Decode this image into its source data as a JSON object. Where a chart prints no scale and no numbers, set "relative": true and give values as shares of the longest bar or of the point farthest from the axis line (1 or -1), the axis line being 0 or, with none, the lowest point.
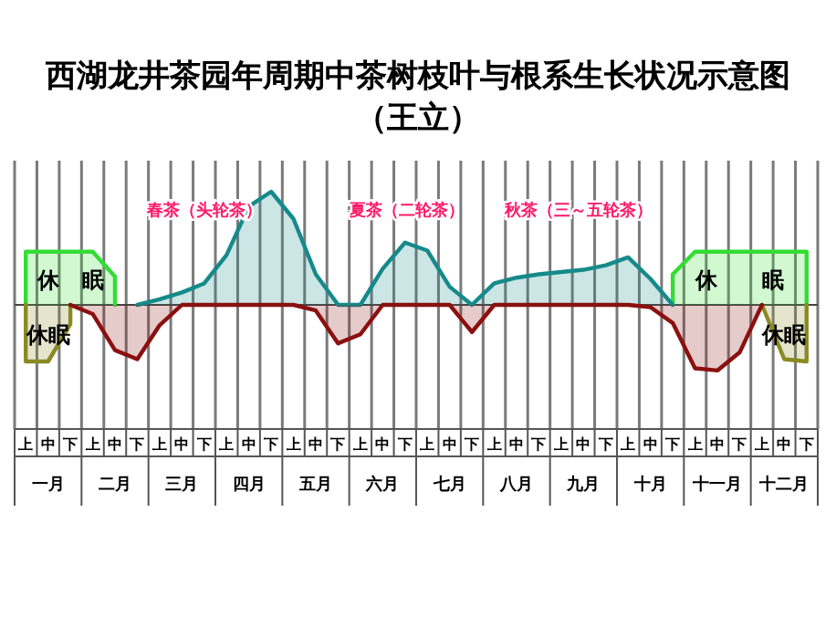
{
  "chart_data": {
    "type": "area",
    "title": "西湖龙井茶园年周期中茶树枝叶与根系生长状况示意图",
    "subtitle": "（王立）",
    "relative": true,
    "grid": "x",
    "legend": false,
    "categories": [
      "上",
      "中",
      "下",
      "上",
      "中",
      "下",
      "上",
      "中",
      "下",
      "上",
      "中",
      "下",
      "上",
      "中",
      "下",
      "上",
      "中",
      "下",
      "上",
      "中",
      "下",
      "上",
      "中",
      "下",
      "上",
      "中",
      "下",
      "上",
      "中",
      "下",
      "上",
      "中",
      "下",
      "上",
      "中",
      "下"
    ],
    "annotations": [
      "春茶（头轮茶）",
      "夏茶（二轮茶）",
      "秋茶（三～五轮茶）",
      "一月",
      "二月",
      "三月",
      "四月",
      "五月",
      "六月",
      "七月",
      "八月",
      "九月",
      "十月",
      "十一月",
      "十二月"
    ],
    "series": [
      {
        "name": "休眠",
        "color": "#33dd33",
        "values": [
          0.47,
          0.47,
          0.47,
          0.47,
          0.25,
          null,
          null,
          null,
          null,
          null,
          null,
          null,
          null,
          null,
          null,
          null,
          null,
          null,
          null,
          null,
          null,
          null,
          null,
          null,
          null,
          null,
          null,
          null,
          null,
          null,
          null,
          null,
          null,
          null,
          null,
          null
        ]
      },
      {
        "name": "休眠",
        "color": "#33dd33",
        "values": [
          null,
          null,
          null,
          null,
          null,
          null,
          null,
          null,
          null,
          null,
          null,
          null,
          null,
          null,
          null,
          null,
          null,
          null,
          null,
          null,
          null,
          null,
          null,
          null,
          null,
          null,
          null,
          null,
          null,
          0.27,
          0.47,
          0.47,
          0.47,
          0.47,
          0.47,
          0.47
        ]
      },
      {
        "name": "休眠",
        "color": "#8a8a22",
        "values": [
          -0.5,
          -0.5,
          -0.17,
          null,
          null,
          null,
          null,
          null,
          null,
          null,
          null,
          null,
          null,
          null,
          null,
          null,
          null,
          null,
          null,
          null,
          null,
          null,
          null,
          null,
          null,
          null,
          null,
          null,
          null,
          null,
          null,
          null,
          null,
          null,
          null,
          null
        ]
      },
      {
        "name": "休眠",
        "color": "#8a8a22",
        "values": [
          null,
          null,
          null,
          null,
          null,
          null,
          null,
          null,
          null,
          null,
          null,
          null,
          null,
          null,
          null,
          null,
          null,
          null,
          null,
          null,
          null,
          null,
          null,
          null,
          null,
          null,
          null,
          null,
          null,
          null,
          null,
          null,
          null,
          0,
          -0.48,
          -0.5
        ]
      },
      {
        "color": "#168a8a",
        "values": [
          null,
          null,
          null,
          null,
          null,
          0,
          0.05,
          0.11,
          0.19,
          0.44,
          0.87,
          1.0,
          0.76,
          0.27,
          0,
          0,
          0.32,
          0.55,
          0.48,
          0.16,
          0,
          0.19,
          0.24,
          0.27,
          0.29,
          0.31,
          0.35,
          0.42,
          0.23,
          0,
          null,
          null,
          null,
          null,
          null,
          null
        ]
      },
      {
        "color": "#8b1010",
        "values": [
          null,
          null,
          0,
          -0.08,
          -0.4,
          -0.48,
          -0.18,
          0,
          0,
          0,
          0,
          0,
          0,
          -0.05,
          -0.34,
          -0.26,
          0,
          0,
          0,
          0,
          -0.24,
          0,
          0,
          0,
          0,
          0,
          0,
          0,
          -0.02,
          -0.16,
          -0.56,
          -0.58,
          -0.42,
          0,
          null,
          null
        ]
      }
    ]
  }
}
